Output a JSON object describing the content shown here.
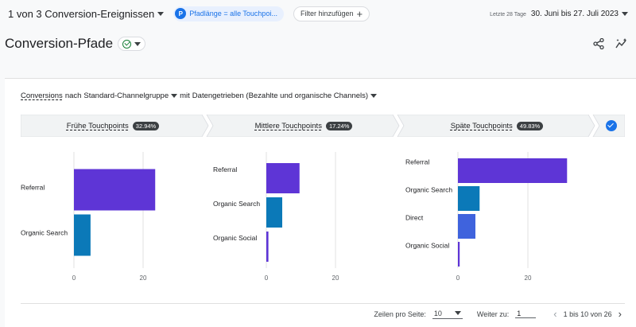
{
  "topbar": {
    "conversion_selector": "1 von 3 Conversion-Ereignissen",
    "path_filter_badge": "P",
    "path_filter_label": "Pfadlänge = alle Touchpoi...",
    "add_filter_label": "Filter hinzufügen",
    "date_label": "Letzte 28 Tage",
    "date_range": "30. Juni bis 27. Juli 2023"
  },
  "title": {
    "page_title": "Conversion-Pfade"
  },
  "report": {
    "dims_metric": "Conversions",
    "dims_by": "nach",
    "dims_group": "Standard-Channelgruppe",
    "dims_with": "mit",
    "dims_model": "Datengetrieben (Bezahlte und organische Channels)"
  },
  "stages": [
    {
      "label": "Frühe Touchpoints",
      "pct": "32.94%"
    },
    {
      "label": "Mittlere Touchpoints",
      "pct": "17.24%"
    },
    {
      "label": "Späte Touchpoints",
      "pct": "49.83%"
    }
  ],
  "chart_data": [
    {
      "type": "bar",
      "title": "Frühe Touchpoints",
      "orientation": "horizontal",
      "categories": [
        "Referral",
        "Organic Search"
      ],
      "values": [
        23.5,
        4.8
      ],
      "colors": [
        "#5e35d6",
        "#0b79b8"
      ],
      "xlim": [
        0,
        28
      ],
      "xticks": [
        0,
        20
      ],
      "grid": true
    },
    {
      "type": "bar",
      "title": "Mittlere Touchpoints",
      "orientation": "horizontal",
      "categories": [
        "Referral",
        "Organic Search",
        "Organic Social"
      ],
      "values": [
        9.6,
        4.6,
        0.6
      ],
      "colors": [
        "#5e35d6",
        "#0b79b8",
        "#5e35d6"
      ],
      "xlim": [
        0,
        28
      ],
      "xticks": [
        0,
        20
      ],
      "grid": true
    },
    {
      "type": "bar",
      "title": "Späte Touchpoints",
      "orientation": "horizontal",
      "categories": [
        "Referral",
        "Organic Search",
        "Direct",
        "Organic Social"
      ],
      "values": [
        31.2,
        6.2,
        5.0,
        0.5
      ],
      "colors": [
        "#5e35d6",
        "#0b79b8",
        "#3f63dd",
        "#5e35d6"
      ],
      "xlim": [
        0,
        36
      ],
      "xticks": [
        0,
        20
      ],
      "grid": true
    }
  ],
  "pager": {
    "rows_label": "Zeilen pro Seite:",
    "rows_value": "10",
    "goto_label": "Weiter zu:",
    "goto_value": "1",
    "range_text": "1 bis 10 von 26"
  }
}
